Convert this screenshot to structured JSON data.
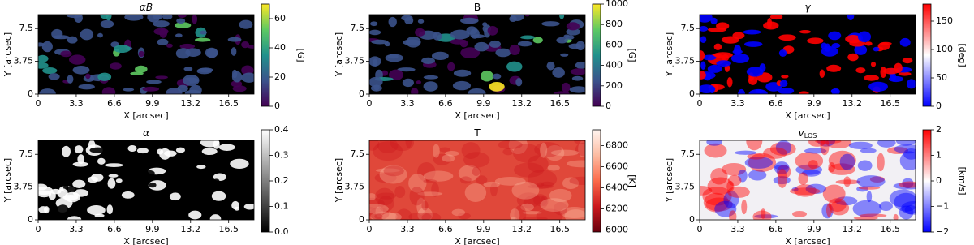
{
  "chart_data": [
    {
      "type": "heatmap",
      "title": "αB",
      "xlabel": "X [arcsec]",
      "ylabel": "Y [arcsec]",
      "xlim": [
        0,
        18.7
      ],
      "ylim": [
        0,
        9.1
      ],
      "xticks": [
        0,
        3.3,
        6.6,
        9.9,
        13.2,
        16.5
      ],
      "yticks": [
        0,
        3.75,
        7.5
      ],
      "background": "#000000",
      "colorbar": {
        "label": "[G]",
        "lim": [
          0,
          70
        ],
        "ticks": [
          0,
          20,
          40,
          60
        ],
        "colormap": [
          "#440154",
          "#3b528b",
          "#21918c",
          "#5ec962",
          "#fde725"
        ]
      }
    },
    {
      "type": "heatmap",
      "title": "B",
      "xlabel": "X [arcsec]",
      "ylabel": "Y [arcsec]",
      "xlim": [
        0,
        18.7
      ],
      "ylim": [
        0,
        9.1
      ],
      "xticks": [
        0,
        3.3,
        6.6,
        9.9,
        13.2,
        16.5
      ],
      "yticks": [
        0,
        3.75,
        7.5
      ],
      "background": "#000000",
      "colorbar": {
        "label": "[G]",
        "lim": [
          0,
          1000
        ],
        "ticks": [
          0,
          200,
          400,
          600,
          800,
          1000
        ],
        "colormap": [
          "#440154",
          "#3b528b",
          "#21918c",
          "#5ec962",
          "#fde725"
        ]
      }
    },
    {
      "type": "heatmap",
      "title": "γ",
      "xlabel": "X [arcsec]",
      "ylabel": "Y [arcsec]",
      "xlim": [
        0,
        18.7
      ],
      "ylim": [
        0,
        9.1
      ],
      "xticks": [
        0,
        3.3,
        6.6,
        9.9,
        13.2,
        16.5
      ],
      "yticks": [
        0,
        3.75,
        7.5
      ],
      "background": "#000000",
      "colorbar": {
        "label": "[deg]",
        "lim": [
          0,
          180
        ],
        "ticks": [
          0,
          50,
          100,
          150
        ],
        "colormap": [
          "#0000ff",
          "#8080ff",
          "#ffffff",
          "#ff8080",
          "#ff0000"
        ]
      }
    },
    {
      "type": "heatmap",
      "title": "α",
      "xlabel": "X [arcsec]",
      "ylabel": "Y [arcsec]",
      "xlim": [
        0,
        18.7
      ],
      "ylim": [
        0,
        9.1
      ],
      "xticks": [
        0,
        3.3,
        6.6,
        9.9,
        13.2,
        16.5
      ],
      "yticks": [
        0,
        3.75,
        7.5
      ],
      "background": "#000000",
      "colorbar": {
        "lim": [
          0,
          0.4
        ],
        "ticks": [
          {
            "value": 0,
            "label": "0.0"
          },
          0.1,
          0.2,
          0.3,
          0.4
        ],
        "colormap": [
          "#000000",
          "#ffffff"
        ]
      }
    },
    {
      "type": "heatmap",
      "title": "T",
      "xlabel": "X [arcsec]",
      "ylabel": "Y [arcsec]",
      "xlim": [
        0,
        18.7
      ],
      "ylim": [
        0,
        9.1
      ],
      "xticks": [
        0,
        3.3,
        6.6,
        9.9,
        13.2,
        16.5
      ],
      "yticks": [
        0,
        3.75,
        7.5
      ],
      "background": "#e0483a",
      "colorbar": {
        "label": "[K]",
        "lim": [
          5980,
          6950
        ],
        "ticks": [
          6000,
          6200,
          6400,
          6600,
          6800
        ],
        "colormap": [
          "#67000d",
          "#cb181d",
          "#fb6a4a",
          "#fcbba1",
          "#fff5f0"
        ]
      }
    },
    {
      "type": "heatmap",
      "title": "v",
      "title_sub": "LOS",
      "xlabel": "X [arcsec]",
      "ylabel": "Y [arcsec]",
      "xlim": [
        0,
        18.7
      ],
      "ylim": [
        0,
        9.1
      ],
      "xticks": [
        0,
        3.3,
        6.6,
        9.9,
        13.2,
        16.5
      ],
      "yticks": [
        0,
        3.75,
        7.5
      ],
      "background": "#f2f0f4",
      "colorbar": {
        "label": "[km/s]",
        "lim": [
          -2,
          2
        ],
        "ticks": [
          {
            "value": -2,
            "label": "−2"
          },
          {
            "value": -1,
            "label": "−1"
          },
          0,
          1,
          2
        ],
        "colormap": [
          "#0000ff",
          "#8080ff",
          "#ffffff",
          "#ff8080",
          "#ff0000"
        ]
      }
    }
  ]
}
